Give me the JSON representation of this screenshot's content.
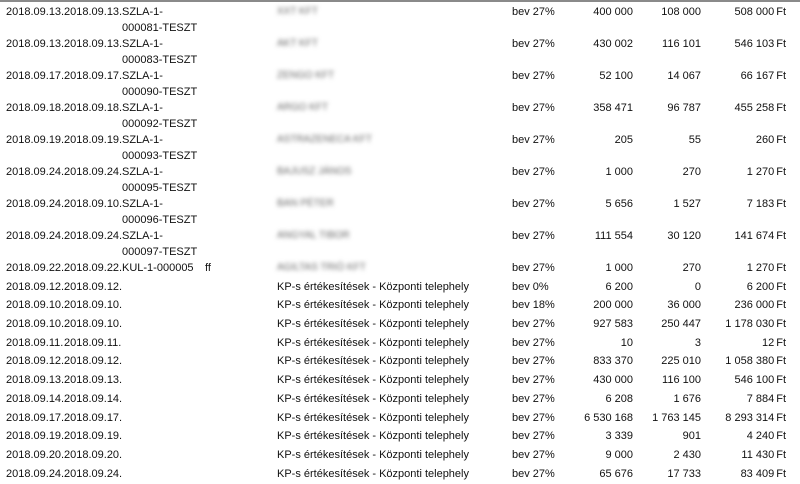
{
  "currency": "Ft",
  "rows": [
    {
      "d1": "2018.09.13.",
      "d2": "2018.09.13.",
      "inv": "SZLA-1-000081-TESZT",
      "note": "",
      "partner": "XXT KFT",
      "blurred": true,
      "vat": "bev 27%",
      "net": "400 000",
      "tax": "108 000",
      "gross": "508 000"
    },
    {
      "d1": "2018.09.13.",
      "d2": "2018.09.13.",
      "inv": "SZLA-1-000083-TESZT",
      "note": "",
      "partner": "AKT KFT",
      "blurred": true,
      "vat": "bev 27%",
      "net": "430 002",
      "tax": "116 101",
      "gross": "546 103"
    },
    {
      "d1": "2018.09.17.",
      "d2": "2018.09.17.",
      "inv": "SZLA-1-000090-TESZT",
      "note": "",
      "partner": "ZENGO KFT",
      "blurred": true,
      "vat": "bev 27%",
      "net": "52 100",
      "tax": "14 067",
      "gross": "66 167"
    },
    {
      "d1": "2018.09.18.",
      "d2": "2018.09.18.",
      "inv": "SZLA-1-000092-TESZT",
      "note": "",
      "partner": "ARGO KFT",
      "blurred": true,
      "vat": "bev 27%",
      "net": "358 471",
      "tax": "96 787",
      "gross": "455 258"
    },
    {
      "d1": "2018.09.19.",
      "d2": "2018.09.19.",
      "inv": "SZLA-1-000093-TESZT",
      "note": "",
      "partner": "ASTRAZENECA KFT",
      "blurred": true,
      "vat": "bev 27%",
      "net": "205",
      "tax": "55",
      "gross": "260"
    },
    {
      "d1": "2018.09.24.",
      "d2": "2018.09.24.",
      "inv": "SZLA-1-000095-TESZT",
      "note": "",
      "partner": "BAJUSZ JÁNOS",
      "blurred": true,
      "vat": "bev 27%",
      "net": "1 000",
      "tax": "270",
      "gross": "1 270"
    },
    {
      "d1": "2018.09.24.",
      "d2": "2018.09.10.",
      "inv": "SZLA-1-000096-TESZT",
      "note": "",
      "partner": "BAN PÉTER",
      "blurred": true,
      "vat": "bev 27%",
      "net": "5 656",
      "tax": "1 527",
      "gross": "7 183"
    },
    {
      "d1": "2018.09.24.",
      "d2": "2018.09.24.",
      "inv": "SZLA-1-000097-TESZT",
      "note": "",
      "partner": "ANGYAL TIBOR",
      "blurred": true,
      "vat": "bev 27%",
      "net": "111 554",
      "tax": "30 120",
      "gross": "141 674"
    },
    {
      "d1": "2018.09.22.",
      "d2": "2018.09.22.",
      "inv": "KUL-1-000005",
      "note": "ff",
      "partner": "AGILTAS TRIÓ KFT",
      "blurred": true,
      "vat": "bev 27%",
      "net": "1 000",
      "tax": "270",
      "gross": "1 270"
    },
    {
      "d1": "2018.09.12.",
      "d2": "2018.09.12.",
      "inv": "",
      "note": "",
      "partner": "KP-s értékesítések - Központi telephely",
      "blurred": false,
      "vat": "bev 0%",
      "net": "6 200",
      "tax": "0",
      "gross": "6 200"
    },
    {
      "d1": "2018.09.10.",
      "d2": "2018.09.10.",
      "inv": "",
      "note": "",
      "partner": "KP-s értékesítések - Központi telephely",
      "blurred": false,
      "vat": "bev 18%",
      "net": "200 000",
      "tax": "36 000",
      "gross": "236 000"
    },
    {
      "d1": "2018.09.10.",
      "d2": "2018.09.10.",
      "inv": "",
      "note": "",
      "partner": "KP-s értékesítések - Központi telephely",
      "blurred": false,
      "vat": "bev 27%",
      "net": "927 583",
      "tax": "250 447",
      "gross": "1 178 030"
    },
    {
      "d1": "2018.09.11.",
      "d2": "2018.09.11.",
      "inv": "",
      "note": "",
      "partner": "KP-s értékesítések - Központi telephely",
      "blurred": false,
      "vat": "bev 27%",
      "net": "10",
      "tax": "3",
      "gross": "12"
    },
    {
      "d1": "2018.09.12.",
      "d2": "2018.09.12.",
      "inv": "",
      "note": "",
      "partner": "KP-s értékesítések - Központi telephely",
      "blurred": false,
      "vat": "bev 27%",
      "net": "833 370",
      "tax": "225 010",
      "gross": "1 058 380"
    },
    {
      "d1": "2018.09.13.",
      "d2": "2018.09.13.",
      "inv": "",
      "note": "",
      "partner": "KP-s értékesítések - Központi telephely",
      "blurred": false,
      "vat": "bev 27%",
      "net": "430 000",
      "tax": "116 100",
      "gross": "546 100"
    },
    {
      "d1": "2018.09.14.",
      "d2": "2018.09.14.",
      "inv": "",
      "note": "",
      "partner": "KP-s értékesítések - Központi telephely",
      "blurred": false,
      "vat": "bev 27%",
      "net": "6 208",
      "tax": "1 676",
      "gross": "7 884"
    },
    {
      "d1": "2018.09.17.",
      "d2": "2018.09.17.",
      "inv": "",
      "note": "",
      "partner": "KP-s értékesítések - Központi telephely",
      "blurred": false,
      "vat": "bev 27%",
      "net": "6 530 168",
      "tax": "1 763 145",
      "gross": "8 293 314"
    },
    {
      "d1": "2018.09.19.",
      "d2": "2018.09.19.",
      "inv": "",
      "note": "",
      "partner": "KP-s értékesítések - Központi telephely",
      "blurred": false,
      "vat": "bev 27%",
      "net": "3 339",
      "tax": "901",
      "gross": "4 240"
    },
    {
      "d1": "2018.09.20.",
      "d2": "2018.09.20.",
      "inv": "",
      "note": "",
      "partner": "KP-s értékesítések - Központi telephely",
      "blurred": false,
      "vat": "bev 27%",
      "net": "9 000",
      "tax": "2 430",
      "gross": "11 430"
    },
    {
      "d1": "2018.09.24.",
      "d2": "2018.09.24.",
      "inv": "",
      "note": "",
      "partner": "KP-s értékesítések - Központi telephely",
      "blurred": false,
      "vat": "bev 27%",
      "net": "65 676",
      "tax": "17 733",
      "gross": "83 409"
    }
  ]
}
